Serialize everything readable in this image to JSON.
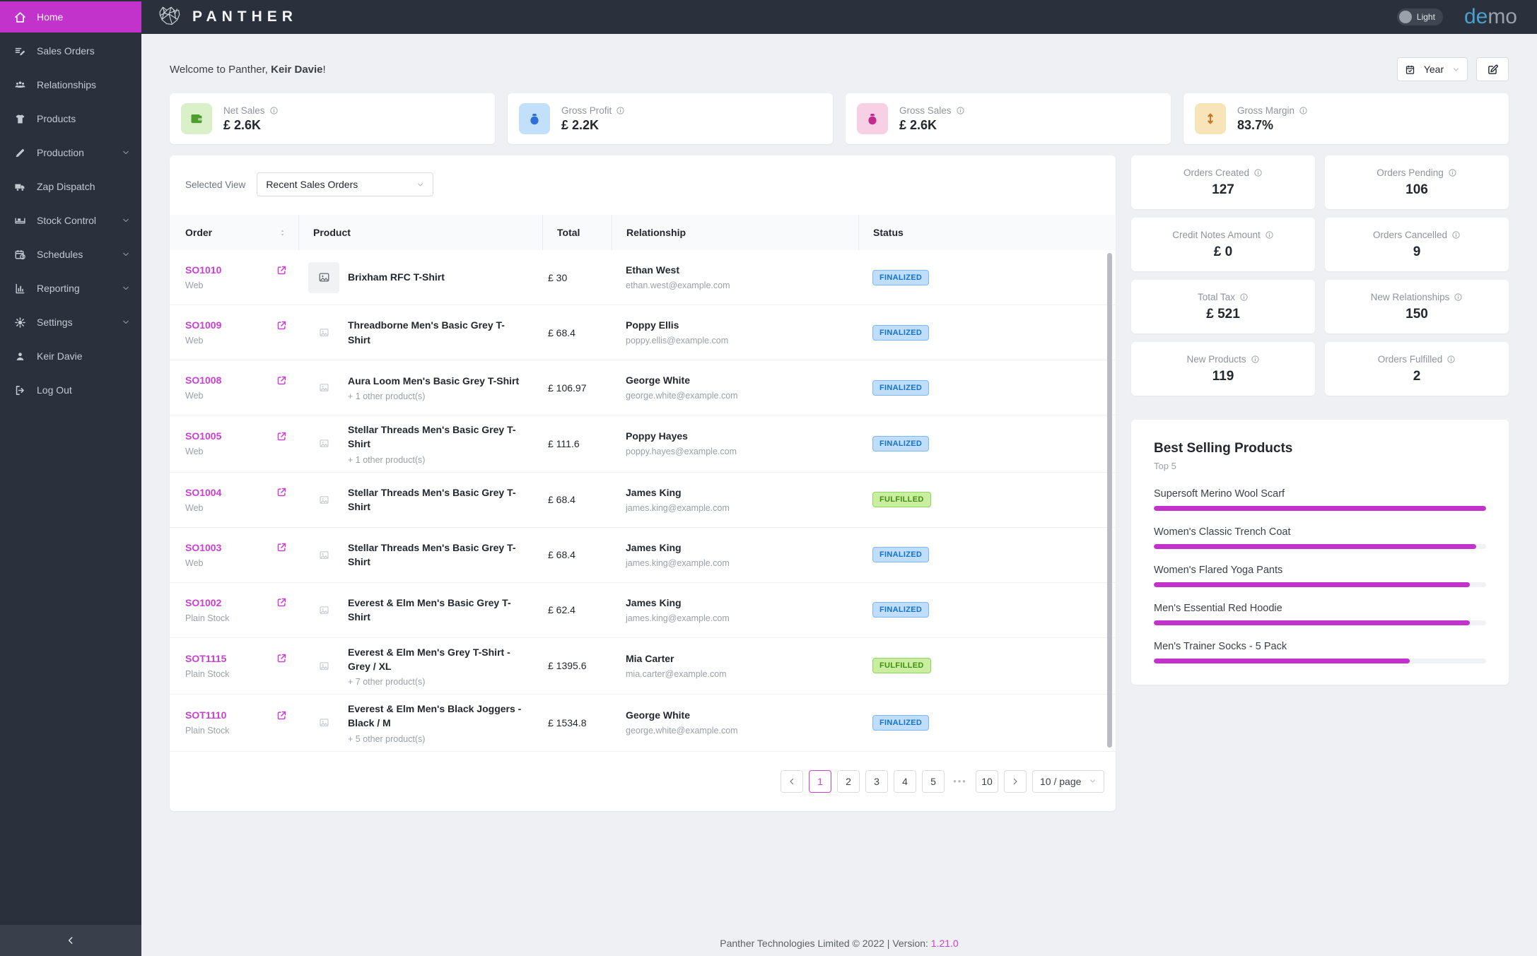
{
  "colors": {
    "accent": "#c233cb",
    "order_link": "#cb3fd2",
    "sidebar_bg": "#2b313c",
    "page_bg": "#eef0f3",
    "status_finalized": {
      "bg": "#c0defa",
      "border": "#7fb8ef",
      "text": "#1272cc"
    },
    "status_fulfilled": {
      "bg": "#c9ee9f",
      "border": "#8fd45c",
      "text": "#418f12"
    }
  },
  "topbar": {
    "brand": "PANTHER",
    "theme_label": "Light",
    "demo_prefix": "de",
    "demo_suffix": "mo"
  },
  "sidebar": {
    "items": [
      {
        "label": "Home",
        "icon": "home",
        "active": true,
        "chevron": false
      },
      {
        "label": "Sales Orders",
        "icon": "orders",
        "active": false,
        "chevron": false
      },
      {
        "label": "Relationships",
        "icon": "people",
        "active": false,
        "chevron": false
      },
      {
        "label": "Products",
        "icon": "tshirt",
        "active": false,
        "chevron": false
      },
      {
        "label": "Production",
        "icon": "pencil",
        "active": false,
        "chevron": true
      },
      {
        "label": "Zap Dispatch",
        "icon": "truck",
        "active": false,
        "chevron": false
      },
      {
        "label": "Stock Control",
        "icon": "stock",
        "active": false,
        "chevron": true
      },
      {
        "label": "Schedules",
        "icon": "calendar",
        "active": false,
        "chevron": true
      },
      {
        "label": "Reporting",
        "icon": "chart",
        "active": false,
        "chevron": true
      },
      {
        "label": "Settings",
        "icon": "gear",
        "active": false,
        "chevron": true
      },
      {
        "label": "Keir Davie",
        "icon": "user",
        "active": false,
        "chevron": false
      },
      {
        "label": "Log Out",
        "icon": "logout",
        "active": false,
        "chevron": false
      }
    ]
  },
  "header": {
    "welcome_prefix": "Welcome to Panther, ",
    "user_name": "Keir Davie",
    "welcome_suffix": "!",
    "period_label": "Year"
  },
  "kpis": [
    {
      "label": "Net Sales",
      "value": "£ 2.6K",
      "icon": "wallet",
      "tile_bg": "#d9f0c8",
      "icon_color": "#4e9e2f"
    },
    {
      "label": "Gross Profit",
      "value": "£ 2.2K",
      "icon": "moneybag",
      "tile_bg": "#c2e0fa",
      "icon_color": "#2e6fd6"
    },
    {
      "label": "Gross Sales",
      "value": "£ 2.6K",
      "icon": "moneybag",
      "tile_bg": "#f7d0e6",
      "icon_color": "#bf2e8a"
    },
    {
      "label": "Gross Margin",
      "value": "83.7%",
      "icon": "updown",
      "tile_bg": "#f7e4b8",
      "icon_color": "#c9752b"
    }
  ],
  "orders_panel": {
    "view_label": "Selected View",
    "view_value": "Recent Sales Orders",
    "table": {
      "columns": [
        "Order",
        "Product",
        "Total",
        "Relationship",
        "Status"
      ],
      "rows": [
        {
          "id": "SO1010",
          "channel": "Web",
          "product": "Brixham RFC T-Shirt",
          "sub": "",
          "total": "£ 30",
          "name": "Ethan West",
          "email": "ethan.west@example.com",
          "status": "FINALIZED",
          "thumb": "large"
        },
        {
          "id": "SO1009",
          "channel": "Web",
          "product": "Threadborne Men's Basic Grey T-Shirt",
          "sub": "",
          "total": "£ 68.4",
          "name": "Poppy Ellis",
          "email": "poppy.ellis@example.com",
          "status": "FINALIZED",
          "thumb": "small"
        },
        {
          "id": "SO1008",
          "channel": "Web",
          "product": "Aura Loom Men's Basic Grey T-Shirt",
          "sub": "+ 1 other product(s)",
          "total": "£ 106.97",
          "name": "George White",
          "email": "george.white@example.com",
          "status": "FINALIZED",
          "thumb": "small"
        },
        {
          "id": "SO1005",
          "channel": "Web",
          "product": "Stellar Threads Men's Basic Grey T-Shirt",
          "sub": "+ 1 other product(s)",
          "total": "£ 111.6",
          "name": "Poppy Hayes",
          "email": "poppy.hayes@example.com",
          "status": "FINALIZED",
          "thumb": "small"
        },
        {
          "id": "SO1004",
          "channel": "Web",
          "product": "Stellar Threads Men's Basic Grey T-Shirt",
          "sub": "",
          "total": "£ 68.4",
          "name": "James King",
          "email": "james.king@example.com",
          "status": "FULFILLED",
          "thumb": "small"
        },
        {
          "id": "SO1003",
          "channel": "Web",
          "product": "Stellar Threads Men's Basic Grey T-Shirt",
          "sub": "",
          "total": "£ 68.4",
          "name": "James King",
          "email": "james.king@example.com",
          "status": "FINALIZED",
          "thumb": "small"
        },
        {
          "id": "SO1002",
          "channel": "Plain Stock",
          "product": "Everest & Elm Men's Basic Grey T-Shirt",
          "sub": "",
          "total": "£ 62.4",
          "name": "James King",
          "email": "james.king@example.com",
          "status": "FINALIZED",
          "thumb": "small"
        },
        {
          "id": "SOT1115",
          "channel": "Plain Stock",
          "product": "Everest & Elm Men's Grey T-Shirt - Grey / XL",
          "sub": "+ 7 other product(s)",
          "total": "£ 1395.6",
          "name": "Mia Carter",
          "email": "mia.carter@example.com",
          "status": "FULFILLED",
          "thumb": "small"
        },
        {
          "id": "SOT1110",
          "channel": "Plain Stock",
          "product": "Everest & Elm Men's Black Joggers - Black / M",
          "sub": "+ 5 other product(s)",
          "total": "£ 1534.8",
          "name": "George White",
          "email": "george.white@example.com",
          "status": "FINALIZED",
          "thumb": "small"
        }
      ]
    },
    "pagination": {
      "current": "1",
      "pages": [
        "1",
        "2",
        "3",
        "4",
        "5",
        "•••",
        "10"
      ],
      "page_size": "10 / page"
    }
  },
  "stats": [
    {
      "label": "Orders Created",
      "value": "127"
    },
    {
      "label": "Orders Pending",
      "value": "106"
    },
    {
      "label": "Credit Notes Amount",
      "value": "£ 0"
    },
    {
      "label": "Orders Cancelled",
      "value": "9"
    },
    {
      "label": "Total Tax",
      "value": "£ 521"
    },
    {
      "label": "New Relationships",
      "value": "150"
    },
    {
      "label": "New Products",
      "value": "119"
    },
    {
      "label": "Orders Fulfilled",
      "value": "2"
    }
  ],
  "best_selling": {
    "title": "Best Selling Products",
    "subtitle": "Top 5"
  },
  "chart_data": {
    "type": "bar",
    "orientation": "horizontal",
    "title": "Best Selling Products",
    "subtitle": "Top 5",
    "categories": [
      "Supersoft Merino Wool Scarf",
      "Women's Classic Trench Coat",
      "Women's Flared Yoga Pants",
      "Men's Essential Red Hoodie",
      "Men's Trainer Socks - 5 Pack"
    ],
    "values": [
      100,
      97,
      95,
      95,
      77
    ],
    "unit": "percent of longest bar (no axis shown)",
    "color": "#c233cb",
    "legend": false,
    "grid": false
  },
  "footer": {
    "text": "Panther Technologies Limited © 2022 | Version:",
    "version": "1.21.0"
  }
}
